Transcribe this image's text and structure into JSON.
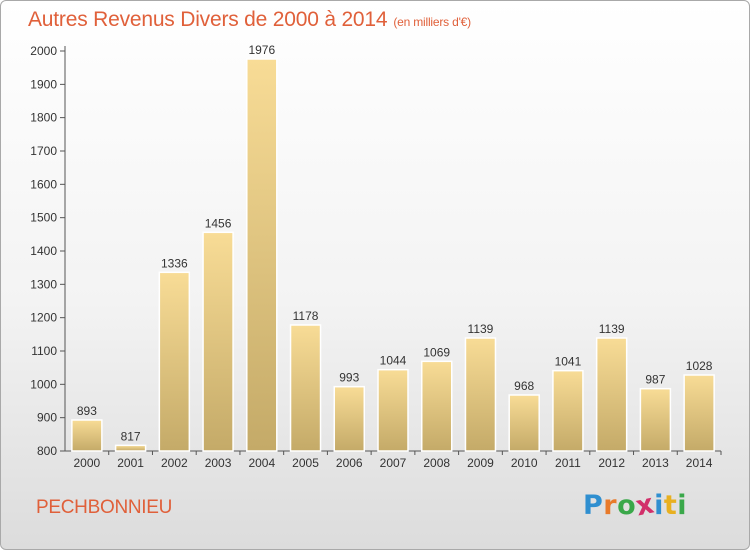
{
  "header": {
    "title": "Autres Revenus Divers de 2000 à 2014",
    "unit": "(en milliers d'€)"
  },
  "footer": {
    "commune": "PECHBONNIEU",
    "brand": [
      "P",
      "r",
      "o",
      "x",
      "i",
      "t",
      "i"
    ],
    "brand_colors": [
      "#2f8fd0",
      "#e87a2a",
      "#3aa84a",
      "#d22f6a",
      "#2f8fd0",
      "#e8b020",
      "#3aa84a"
    ]
  },
  "chart_data": {
    "type": "bar",
    "categories": [
      "2000",
      "2001",
      "2002",
      "2003",
      "2004",
      "2005",
      "2006",
      "2007",
      "2008",
      "2009",
      "2010",
      "2011",
      "2012",
      "2013",
      "2014"
    ],
    "values": [
      893,
      817,
      1336,
      1456,
      1976,
      1178,
      993,
      1044,
      1069,
      1139,
      968,
      1041,
      1139,
      987,
      1028
    ],
    "title": "Autres Revenus Divers de 2000 à 2014",
    "subtitle": "(en milliers d'€)",
    "ylim": [
      800,
      2000
    ],
    "yticks": [
      800,
      900,
      1000,
      1100,
      1200,
      1300,
      1400,
      1500,
      1600,
      1700,
      1800,
      1900,
      2000
    ],
    "grid": false,
    "bar_color": "#e8cc80"
  }
}
